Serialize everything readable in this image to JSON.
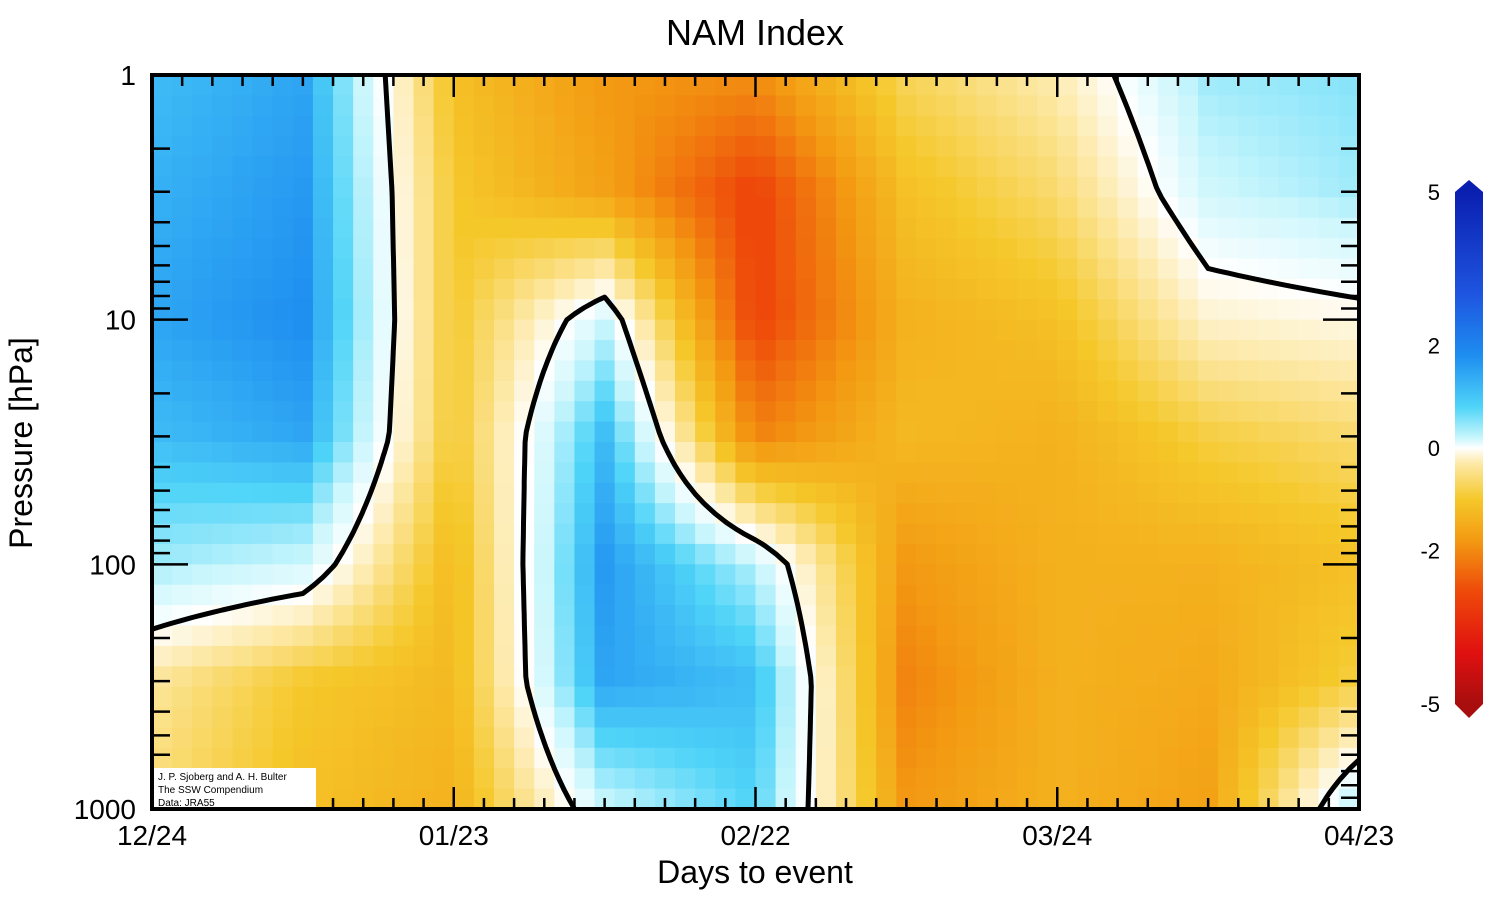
{
  "chart_data": {
    "type": "heatmap",
    "title": "NAM Index",
    "xlabel": "Days to event",
    "ylabel": "Pressure [hPa]",
    "x_ticks": [
      "12/24",
      "01/23",
      "02/22",
      "03/24",
      "04/23"
    ],
    "y_ticks": [
      {
        "value": 1,
        "label": "1"
      },
      {
        "value": 10,
        "label": "10"
      },
      {
        "value": 100,
        "label": "100"
      },
      {
        "value": 1000,
        "label": "1000"
      }
    ],
    "y_scale": "log",
    "y_range": [
      1000,
      1
    ],
    "x_range": [
      "12/24",
      "04/23"
    ],
    "colorbar": {
      "range": [
        -5,
        5
      ],
      "ticks": [
        {
          "value": 5,
          "label": "5"
        },
        {
          "value": 2,
          "label": "2"
        },
        {
          "value": 0,
          "label": "0"
        },
        {
          "value": -2,
          "label": "-2"
        },
        {
          "value": -5,
          "label": "-5"
        }
      ],
      "colors": {
        "strong_positive": "#0a1fb0",
        "positive": "#1e8ef0",
        "weak_positive": "#a8ecfb",
        "zero": "#ffffff",
        "weak_negative": "#fde9a8",
        "negative": "#f5b81a",
        "strong_negative": "#a80e0e"
      }
    },
    "zero_contour": true,
    "days": [
      0,
      15,
      30,
      45,
      60,
      75,
      90,
      105,
      120
    ],
    "levels_hPa": [
      1,
      3,
      10,
      30,
      100,
      300,
      1000
    ],
    "nam_values": [
      [
        1.0,
        1.2,
        -1.0,
        -1.5,
        -1.6,
        -0.7,
        -0.3,
        0.5,
        0.6
      ],
      [
        1.1,
        1.3,
        -0.9,
        -1.4,
        -2.3,
        -1.0,
        -0.6,
        0.3,
        0.5
      ],
      [
        1.2,
        1.4,
        -0.9,
        0.3,
        -2.3,
        -1.2,
        -1.0,
        -0.2,
        -0.1
      ],
      [
        1.0,
        1.2,
        -0.9,
        1.0,
        -1.7,
        -1.1,
        -1.2,
        -0.8,
        -0.6
      ],
      [
        0.5,
        0.3,
        -1.1,
        1.3,
        0.4,
        -1.5,
        -1.2,
        -1.2,
        -1.0
      ],
      [
        -0.4,
        -0.9,
        -1.1,
        1.2,
        1.0,
        -1.7,
        -1.2,
        -1.3,
        -0.8
      ],
      [
        -0.6,
        -1.0,
        -1.2,
        0.3,
        0.8,
        -1.5,
        -1.2,
        -1.4,
        0.5
      ]
    ],
    "credits": [
      "J. P. Sjoberg and A. H. Bulter",
      "The SSW Compendium",
      "Data: JRA55"
    ]
  }
}
